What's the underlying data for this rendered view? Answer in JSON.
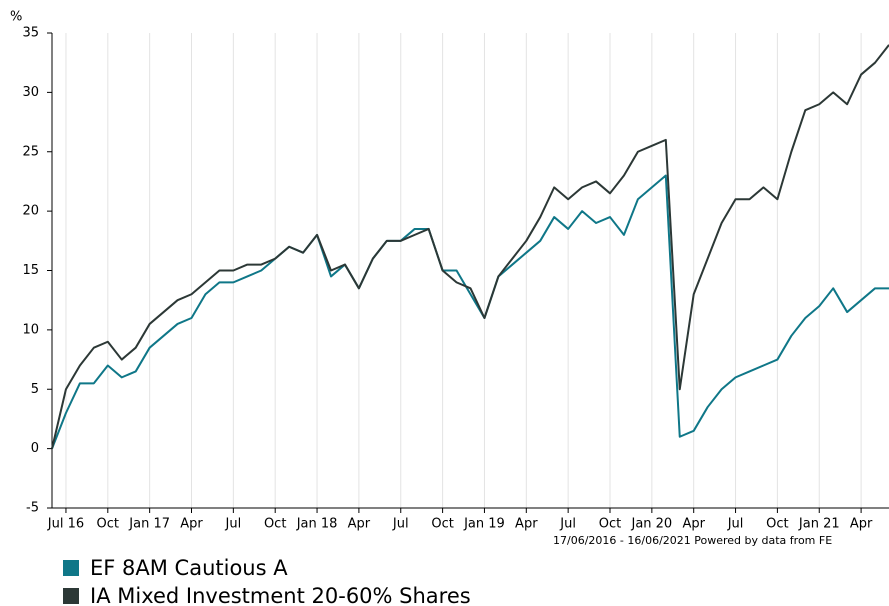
{
  "chart_data": {
    "type": "line",
    "y_label": "%",
    "note": "17/06/2016 - 16/06/2021 Powered by data from FE",
    "x": [
      "2016-06",
      "2016-07",
      "2016-08",
      "2016-09",
      "2016-10",
      "2016-11",
      "2016-12",
      "2017-01",
      "2017-02",
      "2017-03",
      "2017-04",
      "2017-05",
      "2017-06",
      "2017-07",
      "2017-08",
      "2017-09",
      "2017-10",
      "2017-11",
      "2017-12",
      "2018-01",
      "2018-02",
      "2018-03",
      "2018-04",
      "2018-05",
      "2018-06",
      "2018-07",
      "2018-08",
      "2018-09",
      "2018-10",
      "2018-11",
      "2018-12",
      "2019-01",
      "2019-02",
      "2019-03",
      "2019-04",
      "2019-05",
      "2019-06",
      "2019-07",
      "2019-08",
      "2019-09",
      "2019-10",
      "2019-11",
      "2019-12",
      "2020-01",
      "2020-02",
      "2020-03",
      "2020-04",
      "2020-05",
      "2020-06",
      "2020-07",
      "2020-08",
      "2020-09",
      "2020-10",
      "2020-11",
      "2020-12",
      "2021-01",
      "2021-02",
      "2021-03",
      "2021-04",
      "2021-05",
      "2021-06"
    ],
    "series": [
      {
        "name": "EF 8AM Cautious A",
        "color": "#0f7788",
        "values": [
          0,
          3,
          5.5,
          5.5,
          7,
          6,
          6.5,
          8.5,
          9.5,
          10.5,
          11,
          13,
          14,
          14,
          14.5,
          15,
          16,
          17,
          16.5,
          18,
          14.5,
          15.5,
          13.5,
          16,
          17.5,
          17.5,
          18.5,
          18.5,
          15,
          15,
          13,
          11,
          14.5,
          15.5,
          16.5,
          17.5,
          19.5,
          18.5,
          20,
          19,
          19.5,
          18,
          21,
          22,
          23,
          1,
          1.5,
          3.5,
          5,
          6,
          6.5,
          7,
          7.5,
          9.5,
          11,
          12,
          13.5,
          11.5,
          12.5,
          13.5,
          13.5
        ]
      },
      {
        "name": "IA Mixed Investment 20-60% Shares",
        "color": "#2c3836",
        "values": [
          0,
          5,
          7,
          8.5,
          9,
          7.5,
          8.5,
          10.5,
          11.5,
          12.5,
          13,
          14,
          15,
          15,
          15.5,
          15.5,
          16,
          17,
          16.5,
          18,
          15,
          15.5,
          13.5,
          16,
          17.5,
          17.5,
          18,
          18.5,
          15,
          14,
          13.5,
          11,
          14.5,
          16,
          17.5,
          19.5,
          22,
          21,
          22,
          22.5,
          21.5,
          23,
          25,
          25.5,
          26,
          5,
          13,
          16,
          19,
          21,
          21,
          22,
          21,
          25,
          28.5,
          29,
          30,
          29,
          31.5,
          32.5,
          34
        ]
      }
    ],
    "xlim": [
      "2016-06",
      "2021-06"
    ],
    "xticks": [
      {
        "value": "2016-07",
        "label": "Jul 16"
      },
      {
        "value": "2016-10",
        "label": "Oct"
      },
      {
        "value": "2017-01",
        "label": "Jan 17"
      },
      {
        "value": "2017-04",
        "label": "Apr"
      },
      {
        "value": "2017-07",
        "label": "Jul"
      },
      {
        "value": "2017-10",
        "label": "Oct"
      },
      {
        "value": "2018-01",
        "label": "Jan 18"
      },
      {
        "value": "2018-04",
        "label": "Apr"
      },
      {
        "value": "2018-07",
        "label": "Jul"
      },
      {
        "value": "2018-10",
        "label": "Oct"
      },
      {
        "value": "2019-01",
        "label": "Jan 19"
      },
      {
        "value": "2019-04",
        "label": "Apr"
      },
      {
        "value": "2019-07",
        "label": "Jul"
      },
      {
        "value": "2019-10",
        "label": "Oct"
      },
      {
        "value": "2020-01",
        "label": "Jan 20"
      },
      {
        "value": "2020-04",
        "label": "Apr"
      },
      {
        "value": "2020-07",
        "label": "Jul"
      },
      {
        "value": "2020-10",
        "label": "Oct"
      },
      {
        "value": "2021-01",
        "label": "Jan 21"
      },
      {
        "value": "2021-04",
        "label": "Apr"
      }
    ],
    "ylim": [
      -5,
      35
    ],
    "yticks": [
      -5,
      0,
      5,
      10,
      15,
      20,
      25,
      30,
      35
    ],
    "grid": true
  }
}
